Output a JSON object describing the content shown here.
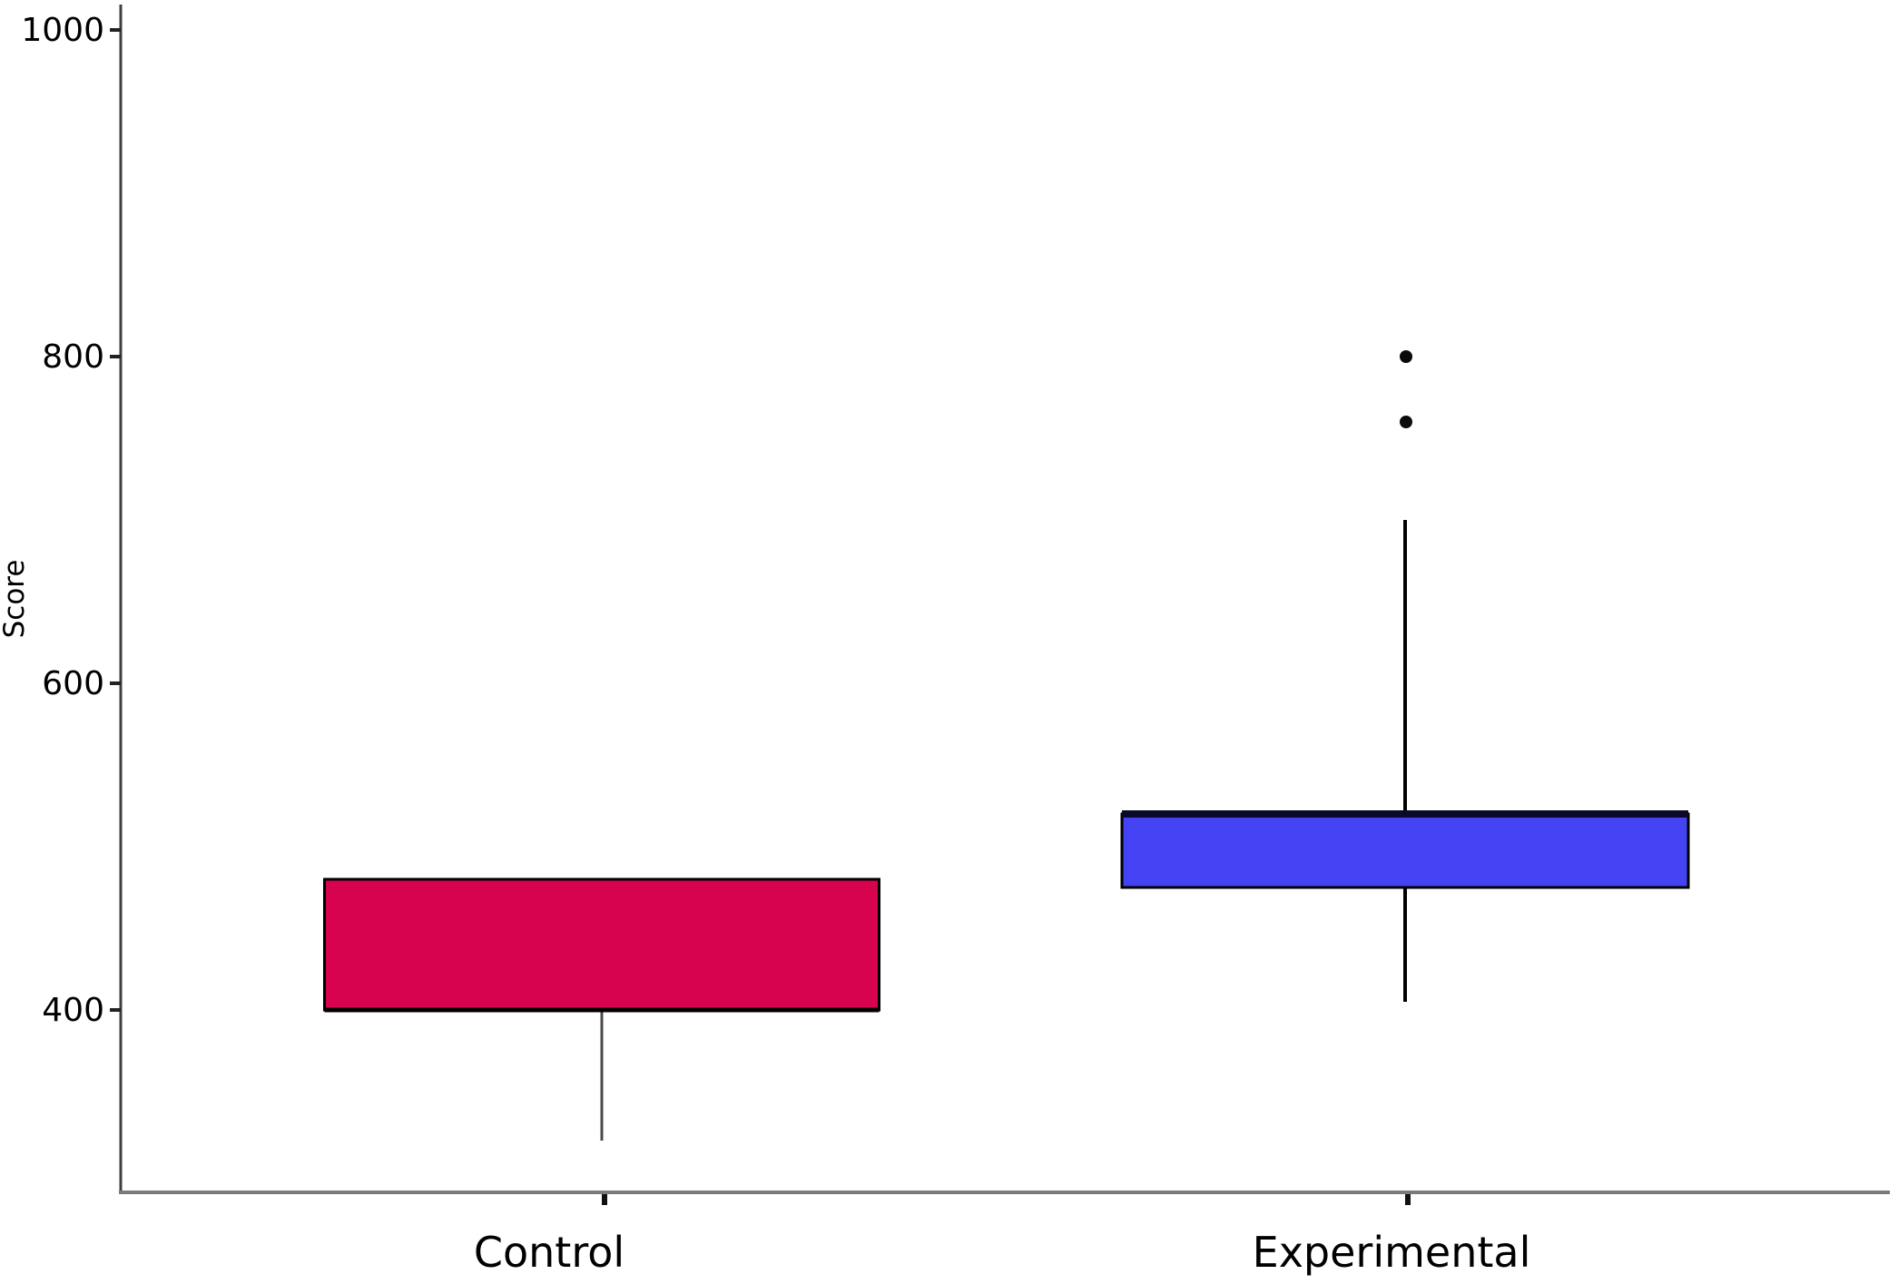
{
  "figure": {
    "ylabel": "Score",
    "x_labels": [
      "Control",
      "Experimental"
    ],
    "y_tick_labels": [
      "400",
      "600",
      "800",
      "1000"
    ]
  },
  "chart_data": {
    "type": "boxplot",
    "title": "",
    "xlabel": "",
    "ylabel": "Score",
    "categories": [
      "Control",
      "Experimental"
    ],
    "y_ticks": [
      400,
      600,
      800,
      1000
    ],
    "y_axis_visible_range": [
      290,
      1013
    ],
    "grid": false,
    "legend": "none",
    "series": [
      {
        "name": "Control",
        "color": "#d8034f",
        "q1": 400,
        "median": 400,
        "q3": 480,
        "whisker_low": 320,
        "whisker_high": 480,
        "outliers": []
      },
      {
        "name": "Experimental",
        "color": "#4343f3",
        "q1": 475,
        "median": 520,
        "q3": 520,
        "whisker_low": 405,
        "whisker_high": 700,
        "outliers": [
          760,
          800
        ]
      }
    ],
    "colors": {
      "box_border": "#000000",
      "control_fill": "#d8034f",
      "experimental_fill": "#4343f3",
      "control_whisker": "#4a4a4a",
      "experimental_whisker": "#000000",
      "experimental_median": "#0a0a28",
      "x_axis": "#7a7a7a",
      "y_axis": "#3f3f3f",
      "text": "#000000"
    }
  }
}
